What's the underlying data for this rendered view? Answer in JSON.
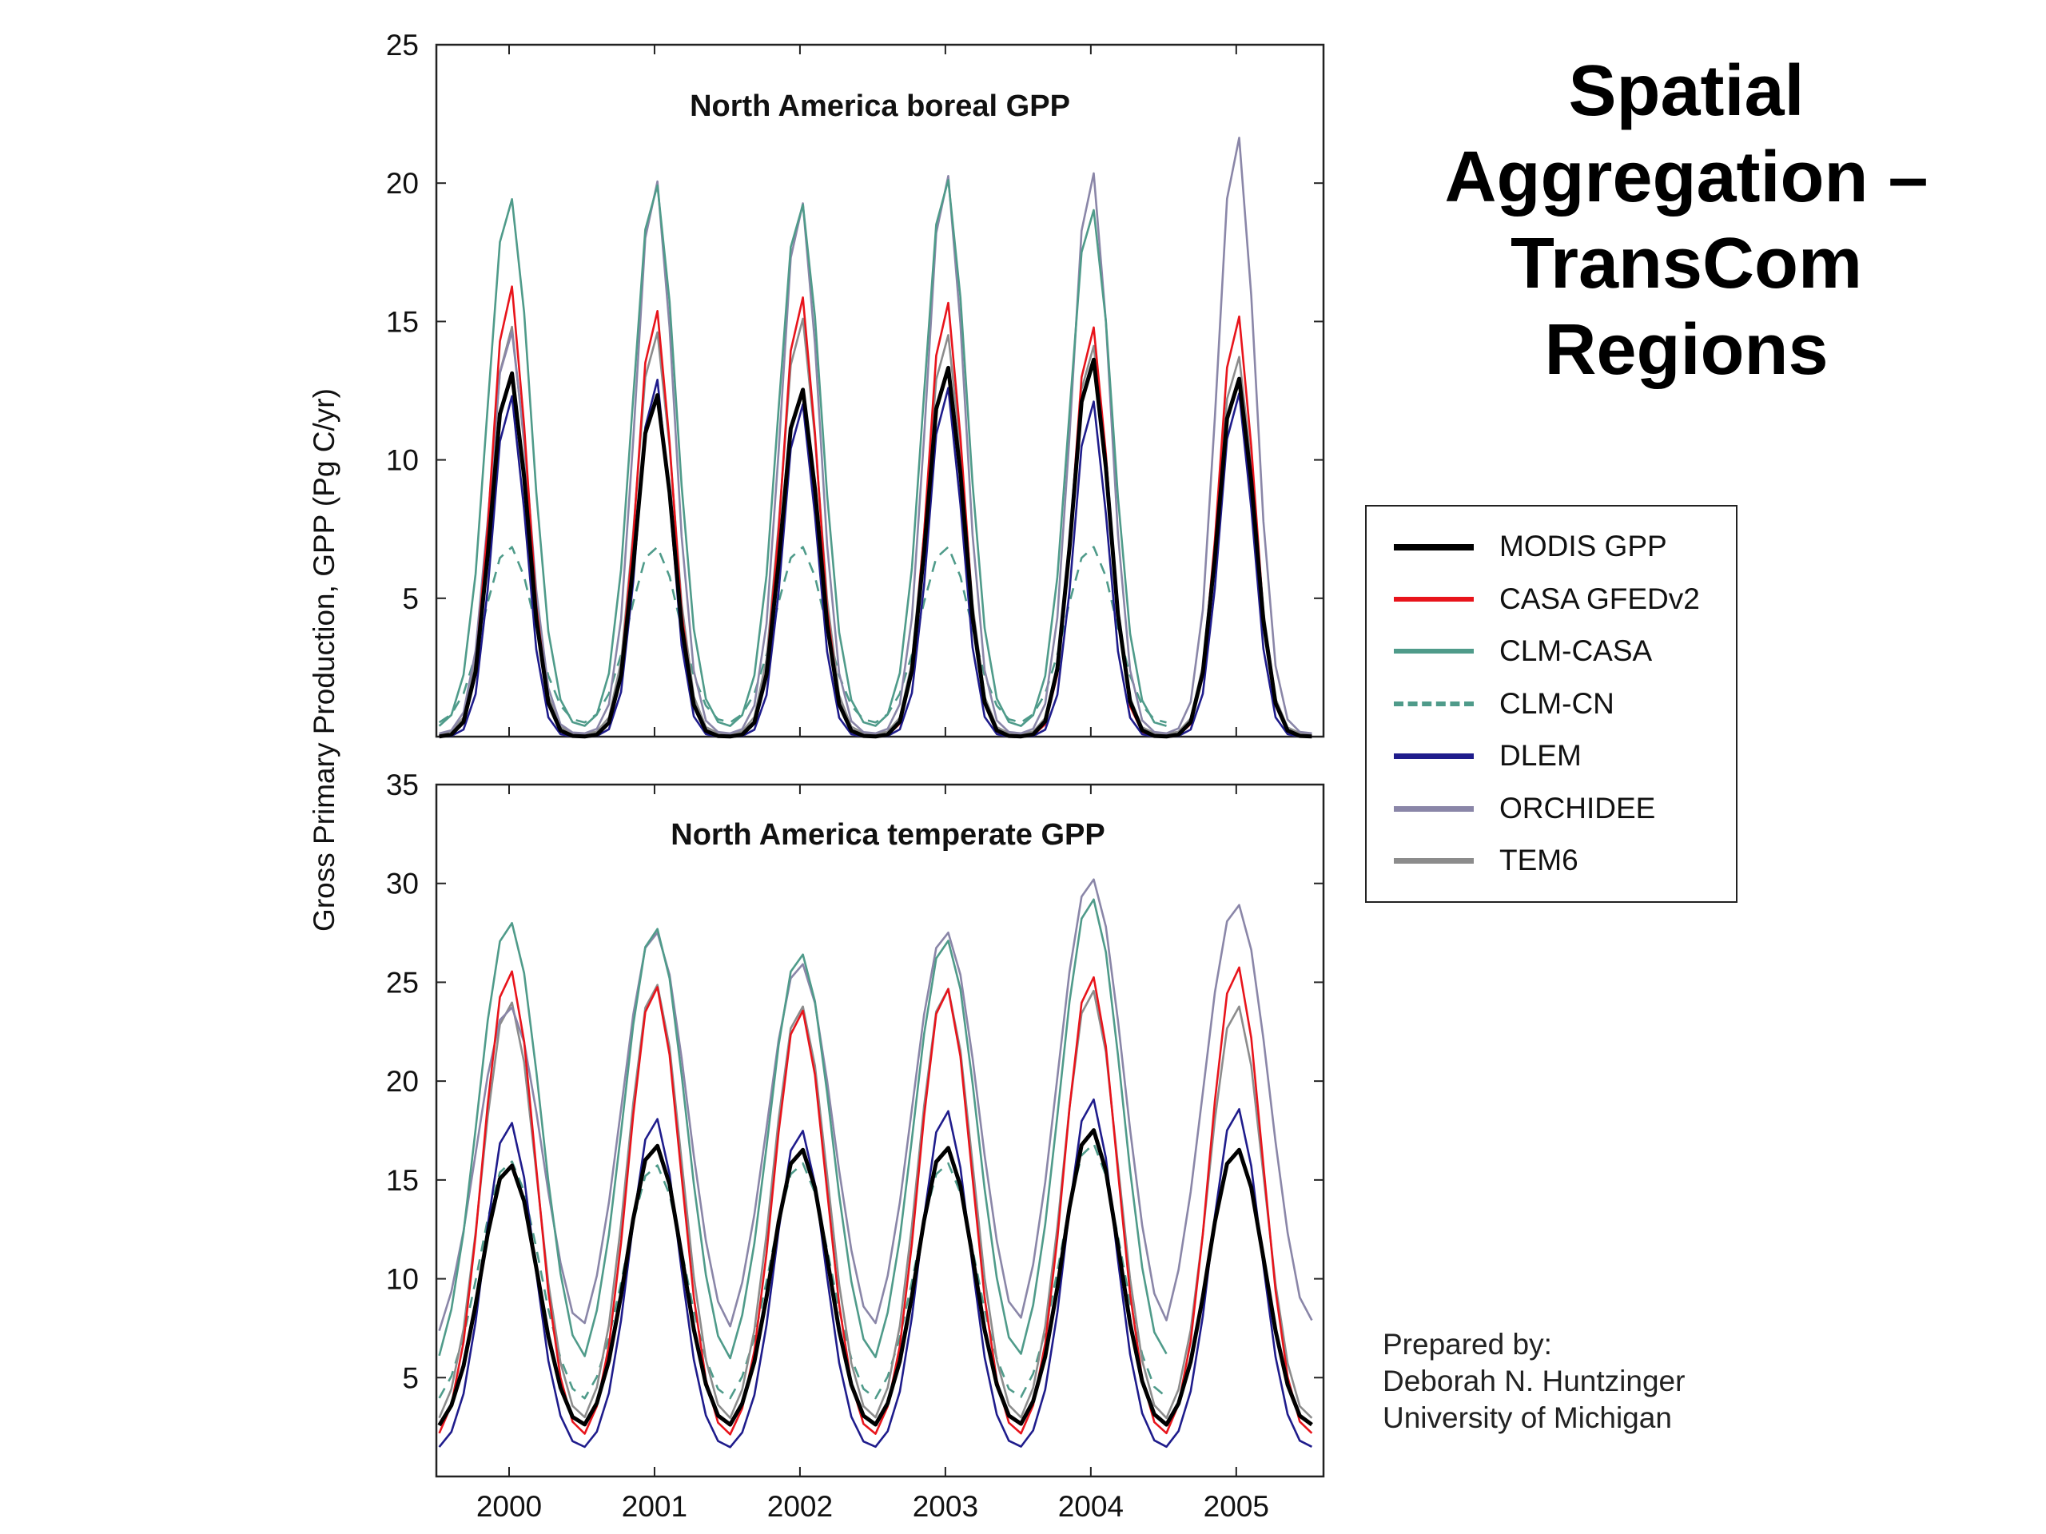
{
  "slide": {
    "title_lines": [
      "Spatial",
      "Aggregation –",
      "TransCom",
      "Regions"
    ],
    "credits": [
      "Prepared by:",
      "Deborah N. Huntzinger",
      "University of Michigan"
    ]
  },
  "legend": [
    {
      "name": "MODIS GPP",
      "color": "#000000",
      "dash": false,
      "width": 8
    },
    {
      "name": "CASA GFEDv2",
      "color": "#e8141b",
      "dash": false,
      "width": 6
    },
    {
      "name": "CLM-CASA",
      "color": "#4f9b8a",
      "dash": false,
      "width": 6
    },
    {
      "name": "CLM-CN",
      "color": "#4f9b8a",
      "dash": true,
      "width": 6
    },
    {
      "name": "DLEM",
      "color": "#1f1c8c",
      "dash": false,
      "width": 7
    },
    {
      "name": "ORCHIDEE",
      "color": "#8a86a8",
      "dash": false,
      "width": 7
    },
    {
      "name": "TEM6",
      "color": "#8c8c8c",
      "dash": false,
      "width": 7
    }
  ],
  "chart_data": [
    {
      "type": "line",
      "title": "North America boreal GPP",
      "ylabel": "Gross Primary Production, GPP (Pg C/yr)",
      "xlim": [
        1999.5,
        2005.6
      ],
      "ylim": [
        0,
        25
      ],
      "yticks": [
        5,
        10,
        15,
        20,
        25
      ],
      "xticks": [
        2000,
        2001,
        2002,
        2003,
        2004,
        2005
      ],
      "series": [
        {
          "name": "MODIS GPP",
          "years": [
            2000,
            2001,
            2002,
            2003,
            2004,
            2005
          ],
          "base": 0.0,
          "peak": [
            13.3,
            12.5,
            12.7,
            13.5,
            13.8,
            13.1
          ],
          "width": 2.2
        },
        {
          "name": "CASA GFEDv2",
          "years": [
            2000,
            2001,
            2002,
            2003,
            2004,
            2005
          ],
          "base": 0.0,
          "peak": [
            16.5,
            15.6,
            16.1,
            15.9,
            15.0,
            15.4
          ],
          "width": 2.1
        },
        {
          "name": "CLM-CASA",
          "years": [
            2000,
            2001,
            2002,
            2003,
            2004
          ],
          "base": 0.3,
          "peak": [
            19.6,
            20.1,
            19.4,
            20.3,
            19.2
          ],
          "width": 2.6
        },
        {
          "name": "CLM-CN",
          "years": [
            2000,
            2001,
            2002,
            2003,
            2004
          ],
          "base": 0.4,
          "peak": [
            6.9,
            6.9,
            6.9,
            6.9,
            6.9
          ],
          "width": 3.0
        },
        {
          "name": "DLEM",
          "years": [
            2000,
            2001,
            2002,
            2003,
            2004,
            2005
          ],
          "base": 0.0,
          "peak": [
            12.5,
            13.1,
            12.2,
            12.8,
            12.3,
            12.6
          ],
          "width": 2.0
        },
        {
          "name": "ORCHIDEE",
          "years": [
            2000,
            2001,
            2002,
            2003,
            2004,
            2005
          ],
          "base": 0.1,
          "peak": [
            14.8,
            20.3,
            19.5,
            20.5,
            20.6,
            21.9
          ],
          "width": 2.3
        },
        {
          "name": "TEM6",
          "years": [
            2000,
            2001,
            2002,
            2003,
            2004,
            2005
          ],
          "base": 0.1,
          "peak": [
            15.0,
            14.8,
            15.3,
            14.7,
            14.3,
            13.9
          ],
          "width": 2.2
        }
      ]
    },
    {
      "type": "line",
      "title": "North America temperate GPP",
      "ylabel": "Gross Primary Production, GPP (Pg C/yr)",
      "xlim": [
        1999.5,
        2005.6
      ],
      "ylim": [
        0,
        35
      ],
      "yticks": [
        5,
        10,
        15,
        20,
        25,
        30,
        35
      ],
      "xticks": [
        2000,
        2001,
        2002,
        2003,
        2004,
        2005
      ],
      "series": [
        {
          "name": "MODIS GPP",
          "years": [
            2000,
            2001,
            2002,
            2003,
            2004,
            2005
          ],
          "base": 2.0,
          "peak": [
            15.8,
            16.8,
            16.6,
            16.7,
            17.6,
            16.6
          ],
          "width": 3.4
        },
        {
          "name": "CASA GFEDv2",
          "years": [
            2000,
            2001,
            2002,
            2003,
            2004,
            2005
          ],
          "base": 1.5,
          "peak": [
            25.7,
            24.9,
            23.7,
            24.8,
            25.4,
            25.9
          ],
          "width": 3.2
        },
        {
          "name": "CLM-CASA",
          "years": [
            2000,
            2001,
            2002,
            2003,
            2004
          ],
          "base": 4.2,
          "peak": [
            28.1,
            27.8,
            26.5,
            27.2,
            29.3
          ],
          "width": 3.8
        },
        {
          "name": "CLM-CN",
          "years": [
            2000,
            2001,
            2002,
            2003,
            2004
          ],
          "base": 3.2,
          "peak": [
            16.0,
            15.8,
            15.9,
            15.9,
            16.9
          ],
          "width": 3.6
        },
        {
          "name": "DLEM",
          "years": [
            2000,
            2001,
            2002,
            2003,
            2004,
            2005
          ],
          "base": 1.2,
          "peak": [
            18.0,
            18.2,
            17.6,
            18.6,
            19.2,
            18.7
          ],
          "width": 3.0
        },
        {
          "name": "ORCHIDEE",
          "years": [
            2000,
            2001,
            2002,
            2003,
            2004,
            2005
          ],
          "base": 5.5,
          "peak": [
            23.8,
            27.6,
            26.0,
            27.6,
            30.3,
            29.0
          ],
          "width": 4.0
        },
        {
          "name": "TEM6",
          "years": [
            2000,
            2001,
            2002,
            2003,
            2004,
            2005
          ],
          "base": 2.2,
          "peak": [
            24.1,
            25.0,
            23.9,
            24.8,
            24.7,
            23.9
          ],
          "width": 3.3
        }
      ]
    }
  ]
}
